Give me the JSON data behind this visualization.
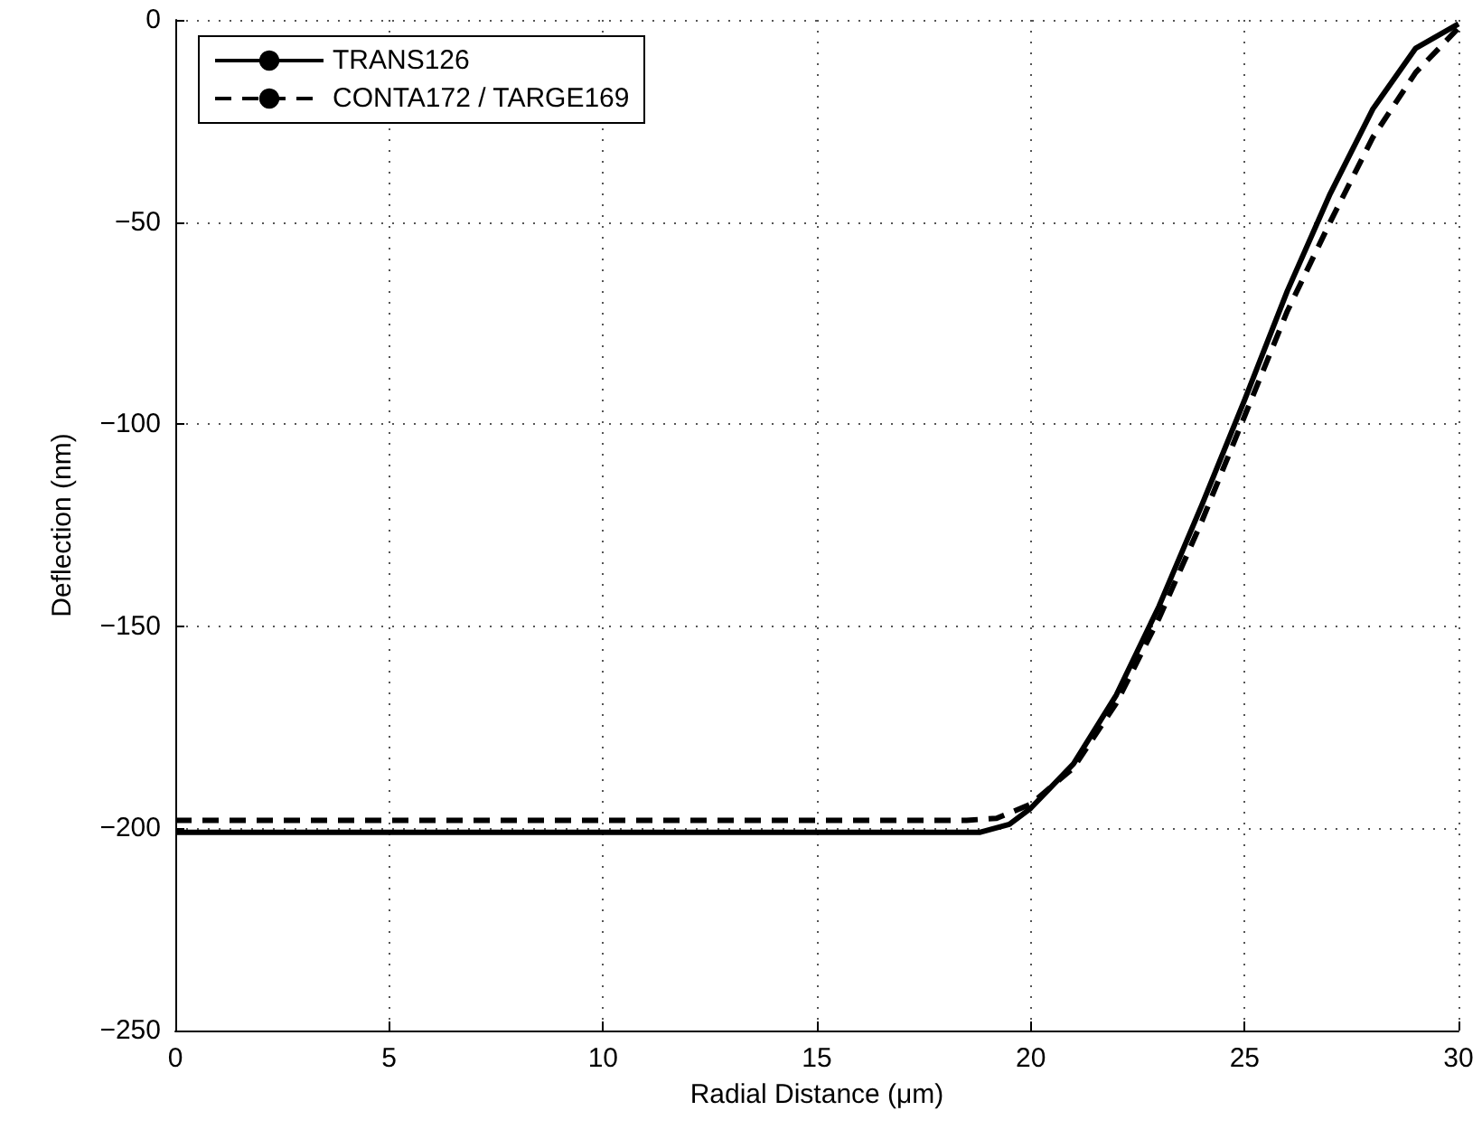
{
  "chart_data": {
    "type": "line",
    "xlabel": "Radial Distance (μm)",
    "ylabel": "Deflection (nm)",
    "xlim": [
      0,
      30
    ],
    "xticks": [
      0,
      5,
      10,
      15,
      20,
      25,
      30
    ],
    "ylim": [
      -250,
      0
    ],
    "yticks": [
      -250,
      -200,
      -150,
      -100,
      -50,
      0
    ],
    "grid": true,
    "legend": "top left",
    "marker": "none",
    "series": [
      {
        "name": "TRANS126",
        "color": "#000000",
        "line_style": "solid",
        "x": [
          0,
          18.8,
          19.5,
          20,
          21,
          22,
          23,
          24,
          25,
          26,
          27,
          28,
          29,
          30
        ],
        "values": [
          -201,
          -201,
          -199,
          -195,
          -184,
          -167,
          -145,
          -120,
          -94,
          -67,
          -43,
          -22,
          -7,
          -1
        ]
      },
      {
        "name": "CONTA172 / TARGE169",
        "color": "#000000",
        "line_style": "dashed",
        "x": [
          0,
          18.5,
          19.2,
          20,
          21,
          22,
          23,
          24,
          25,
          26,
          27,
          28,
          29,
          30
        ],
        "values": [
          -198,
          -198,
          -197.5,
          -194,
          -185,
          -169,
          -148,
          -124,
          -98,
          -72,
          -50,
          -29,
          -13,
          -2
        ]
      }
    ]
  }
}
